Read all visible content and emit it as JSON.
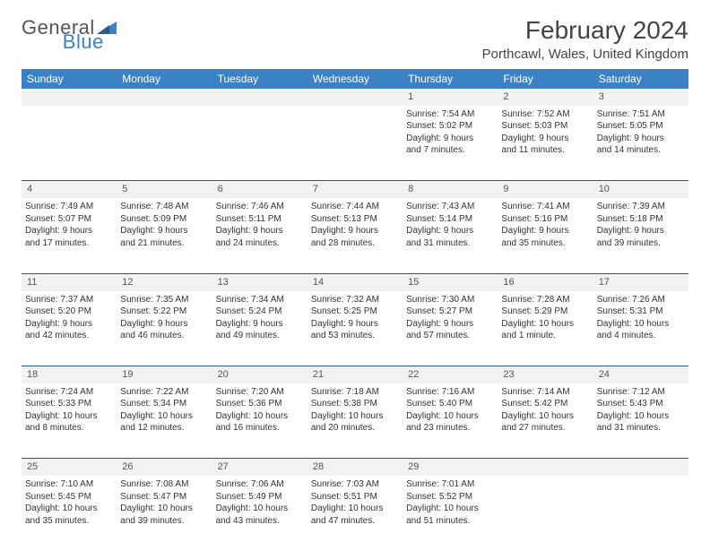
{
  "brand": {
    "name1": "General",
    "name2": "Blue"
  },
  "title": "February 2024",
  "location": "Porthcawl, Wales, United Kingdom",
  "colors": {
    "header_bg": "#3b82c4",
    "header_fg": "#ffffff",
    "row_divider": "#2a5a8a",
    "daynum_bg": "#f2f2f2",
    "text": "#333333",
    "brand_gray": "#555555",
    "brand_blue": "#3b82c4"
  },
  "typography": {
    "title_fontsize": 28,
    "location_fontsize": 15,
    "header_fontsize": 12,
    "cell_fontsize": 10,
    "daynum_fontsize": 11
  },
  "layout": {
    "columns": 7,
    "rows": 5
  },
  "weekdays": [
    "Sunday",
    "Monday",
    "Tuesday",
    "Wednesday",
    "Thursday",
    "Friday",
    "Saturday"
  ],
  "weeks": [
    [
      null,
      null,
      null,
      null,
      {
        "n": "1",
        "sr": "Sunrise: 7:54 AM",
        "ss": "Sunset: 5:02 PM",
        "d1": "Daylight: 9 hours",
        "d2": "and 7 minutes."
      },
      {
        "n": "2",
        "sr": "Sunrise: 7:52 AM",
        "ss": "Sunset: 5:03 PM",
        "d1": "Daylight: 9 hours",
        "d2": "and 11 minutes."
      },
      {
        "n": "3",
        "sr": "Sunrise: 7:51 AM",
        "ss": "Sunset: 5:05 PM",
        "d1": "Daylight: 9 hours",
        "d2": "and 14 minutes."
      }
    ],
    [
      {
        "n": "4",
        "sr": "Sunrise: 7:49 AM",
        "ss": "Sunset: 5:07 PM",
        "d1": "Daylight: 9 hours",
        "d2": "and 17 minutes."
      },
      {
        "n": "5",
        "sr": "Sunrise: 7:48 AM",
        "ss": "Sunset: 5:09 PM",
        "d1": "Daylight: 9 hours",
        "d2": "and 21 minutes."
      },
      {
        "n": "6",
        "sr": "Sunrise: 7:46 AM",
        "ss": "Sunset: 5:11 PM",
        "d1": "Daylight: 9 hours",
        "d2": "and 24 minutes."
      },
      {
        "n": "7",
        "sr": "Sunrise: 7:44 AM",
        "ss": "Sunset: 5:13 PM",
        "d1": "Daylight: 9 hours",
        "d2": "and 28 minutes."
      },
      {
        "n": "8",
        "sr": "Sunrise: 7:43 AM",
        "ss": "Sunset: 5:14 PM",
        "d1": "Daylight: 9 hours",
        "d2": "and 31 minutes."
      },
      {
        "n": "9",
        "sr": "Sunrise: 7:41 AM",
        "ss": "Sunset: 5:16 PM",
        "d1": "Daylight: 9 hours",
        "d2": "and 35 minutes."
      },
      {
        "n": "10",
        "sr": "Sunrise: 7:39 AM",
        "ss": "Sunset: 5:18 PM",
        "d1": "Daylight: 9 hours",
        "d2": "and 39 minutes."
      }
    ],
    [
      {
        "n": "11",
        "sr": "Sunrise: 7:37 AM",
        "ss": "Sunset: 5:20 PM",
        "d1": "Daylight: 9 hours",
        "d2": "and 42 minutes."
      },
      {
        "n": "12",
        "sr": "Sunrise: 7:35 AM",
        "ss": "Sunset: 5:22 PM",
        "d1": "Daylight: 9 hours",
        "d2": "and 46 minutes."
      },
      {
        "n": "13",
        "sr": "Sunrise: 7:34 AM",
        "ss": "Sunset: 5:24 PM",
        "d1": "Daylight: 9 hours",
        "d2": "and 49 minutes."
      },
      {
        "n": "14",
        "sr": "Sunrise: 7:32 AM",
        "ss": "Sunset: 5:25 PM",
        "d1": "Daylight: 9 hours",
        "d2": "and 53 minutes."
      },
      {
        "n": "15",
        "sr": "Sunrise: 7:30 AM",
        "ss": "Sunset: 5:27 PM",
        "d1": "Daylight: 9 hours",
        "d2": "and 57 minutes."
      },
      {
        "n": "16",
        "sr": "Sunrise: 7:28 AM",
        "ss": "Sunset: 5:29 PM",
        "d1": "Daylight: 10 hours",
        "d2": "and 1 minute."
      },
      {
        "n": "17",
        "sr": "Sunrise: 7:26 AM",
        "ss": "Sunset: 5:31 PM",
        "d1": "Daylight: 10 hours",
        "d2": "and 4 minutes."
      }
    ],
    [
      {
        "n": "18",
        "sr": "Sunrise: 7:24 AM",
        "ss": "Sunset: 5:33 PM",
        "d1": "Daylight: 10 hours",
        "d2": "and 8 minutes."
      },
      {
        "n": "19",
        "sr": "Sunrise: 7:22 AM",
        "ss": "Sunset: 5:34 PM",
        "d1": "Daylight: 10 hours",
        "d2": "and 12 minutes."
      },
      {
        "n": "20",
        "sr": "Sunrise: 7:20 AM",
        "ss": "Sunset: 5:36 PM",
        "d1": "Daylight: 10 hours",
        "d2": "and 16 minutes."
      },
      {
        "n": "21",
        "sr": "Sunrise: 7:18 AM",
        "ss": "Sunset: 5:38 PM",
        "d1": "Daylight: 10 hours",
        "d2": "and 20 minutes."
      },
      {
        "n": "22",
        "sr": "Sunrise: 7:16 AM",
        "ss": "Sunset: 5:40 PM",
        "d1": "Daylight: 10 hours",
        "d2": "and 23 minutes."
      },
      {
        "n": "23",
        "sr": "Sunrise: 7:14 AM",
        "ss": "Sunset: 5:42 PM",
        "d1": "Daylight: 10 hours",
        "d2": "and 27 minutes."
      },
      {
        "n": "24",
        "sr": "Sunrise: 7:12 AM",
        "ss": "Sunset: 5:43 PM",
        "d1": "Daylight: 10 hours",
        "d2": "and 31 minutes."
      }
    ],
    [
      {
        "n": "25",
        "sr": "Sunrise: 7:10 AM",
        "ss": "Sunset: 5:45 PM",
        "d1": "Daylight: 10 hours",
        "d2": "and 35 minutes."
      },
      {
        "n": "26",
        "sr": "Sunrise: 7:08 AM",
        "ss": "Sunset: 5:47 PM",
        "d1": "Daylight: 10 hours",
        "d2": "and 39 minutes."
      },
      {
        "n": "27",
        "sr": "Sunrise: 7:06 AM",
        "ss": "Sunset: 5:49 PM",
        "d1": "Daylight: 10 hours",
        "d2": "and 43 minutes."
      },
      {
        "n": "28",
        "sr": "Sunrise: 7:03 AM",
        "ss": "Sunset: 5:51 PM",
        "d1": "Daylight: 10 hours",
        "d2": "and 47 minutes."
      },
      {
        "n": "29",
        "sr": "Sunrise: 7:01 AM",
        "ss": "Sunset: 5:52 PM",
        "d1": "Daylight: 10 hours",
        "d2": "and 51 minutes."
      },
      null,
      null
    ]
  ]
}
